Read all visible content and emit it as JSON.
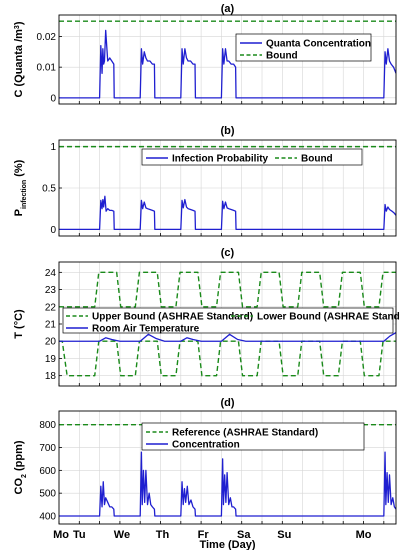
{
  "chart_data": [
    {
      "panel": "(a)",
      "type": "line",
      "title": "(a)",
      "ylabel": "C (Quanta /m³)",
      "ylabel_parts": [
        "C (Quanta /m",
        "3",
        ")"
      ],
      "xlim": [
        0,
        8.3
      ],
      "ylim": [
        -0.002,
        0.027
      ],
      "yticks": [
        0,
        0.01,
        0.02
      ],
      "ytick_labels": [
        "0",
        "0.01",
        "0.02"
      ],
      "grid": true,
      "legend_position": "top-right",
      "series": [
        {
          "name": "Quanta Concentration",
          "style": "solid",
          "color": "#1f1fd0",
          "baseline": 0,
          "pulses": [
            {
              "x": [
                1.0,
                1.03,
                1.06,
                1.08,
                1.1,
                1.12,
                1.15,
                1.2,
                1.25,
                1.3,
                1.35,
                1.36
              ],
              "y": [
                0.0,
                0.017,
                0.008,
                0.016,
                0.011,
                0.012,
                0.022,
                0.012,
                0.013,
                0.012,
                0.011,
                0.0
              ]
            },
            {
              "x": [
                2.0,
                2.03,
                2.06,
                2.1,
                2.14,
                2.18,
                2.24,
                2.3,
                2.35,
                2.36
              ],
              "y": [
                0.0,
                0.016,
                0.011,
                0.015,
                0.013,
                0.012,
                0.012,
                0.011,
                0.011,
                0.0
              ]
            },
            {
              "x": [
                3.0,
                3.03,
                3.06,
                3.1,
                3.14,
                3.18,
                3.24,
                3.3,
                3.35,
                3.36
              ],
              "y": [
                0.0,
                0.016,
                0.011,
                0.016,
                0.013,
                0.012,
                0.012,
                0.011,
                0.011,
                0.0
              ]
            },
            {
              "x": [
                4.0,
                4.03,
                4.06,
                4.1,
                4.14,
                4.18,
                4.24,
                4.3,
                4.35,
                4.36
              ],
              "y": [
                0.0,
                0.016,
                0.011,
                0.016,
                0.012,
                0.012,
                0.011,
                0.011,
                0.01,
                0.0
              ]
            },
            {
              "x": [
                8.0,
                8.03,
                8.06,
                8.1,
                8.14,
                8.18,
                8.24,
                8.3
              ],
              "y": [
                0.0,
                0.015,
                0.011,
                0.016,
                0.012,
                0.011,
                0.01,
                0.008
              ]
            }
          ]
        },
        {
          "name": "Bound",
          "style": "dashed",
          "color": "#1a8a1a",
          "y": 0.025
        }
      ]
    },
    {
      "panel": "(b)",
      "type": "line",
      "title": "(b)",
      "ylabel": "P infection (%)",
      "ylabel_parts": [
        "P",
        "infection",
        " (%)"
      ],
      "xlim": [
        0,
        8.3
      ],
      "ylim": [
        -0.08,
        1.08
      ],
      "yticks": [
        0,
        0.5,
        1
      ],
      "ytick_labels": [
        "0",
        "0.5",
        "1"
      ],
      "grid": true,
      "legend_position": "top",
      "series": [
        {
          "name": "Infection Probability",
          "style": "solid",
          "color": "#1f1fd0",
          "baseline": 0,
          "pulses": [
            {
              "x": [
                1.0,
                1.03,
                1.06,
                1.08,
                1.1,
                1.13,
                1.16,
                1.2,
                1.25,
                1.3,
                1.35,
                1.36
              ],
              "y": [
                0.0,
                0.35,
                0.25,
                0.36,
                0.27,
                0.4,
                0.22,
                0.25,
                0.23,
                0.23,
                0.22,
                0.0
              ]
            },
            {
              "x": [
                2.0,
                2.03,
                2.06,
                2.1,
                2.14,
                2.18,
                2.24,
                2.3,
                2.35,
                2.36
              ],
              "y": [
                0.0,
                0.35,
                0.25,
                0.33,
                0.26,
                0.25,
                0.24,
                0.23,
                0.22,
                0.0
              ]
            },
            {
              "x": [
                3.0,
                3.03,
                3.06,
                3.1,
                3.14,
                3.18,
                3.24,
                3.3,
                3.35,
                3.36
              ],
              "y": [
                0.0,
                0.35,
                0.26,
                0.36,
                0.27,
                0.25,
                0.24,
                0.23,
                0.22,
                0.0
              ]
            },
            {
              "x": [
                4.0,
                4.03,
                4.06,
                4.1,
                4.14,
                4.18,
                4.24,
                4.3,
                4.35,
                4.36
              ],
              "y": [
                0.0,
                0.34,
                0.25,
                0.33,
                0.26,
                0.25,
                0.24,
                0.23,
                0.22,
                0.0
              ]
            },
            {
              "x": [
                8.0,
                8.03,
                8.06,
                8.1,
                8.14,
                8.2,
                8.25,
                8.3
              ],
              "y": [
                0.0,
                0.3,
                0.22,
                0.27,
                0.24,
                0.22,
                0.2,
                0.17
              ]
            }
          ]
        },
        {
          "name": "Bound",
          "style": "dashed",
          "color": "#1a8a1a",
          "y": 1
        }
      ]
    },
    {
      "panel": "(c)",
      "type": "line",
      "title": "(c)",
      "ylabel": "T (°C)",
      "xlim": [
        0,
        8.3
      ],
      "ylim": [
        17.4,
        24.6
      ],
      "yticks": [
        18,
        19,
        20,
        21,
        22,
        23,
        24
      ],
      "ytick_labels": [
        "18",
        "19",
        "20",
        "21",
        "22",
        "23",
        "24"
      ],
      "grid": true,
      "legend_position": "middle",
      "series": [
        {
          "name": "Upper Bound (ASHRAE Standard)",
          "style": "dashed",
          "color": "#1a8a1a",
          "x": [
            0,
            0.88,
            0.98,
            1.42,
            1.52,
            1.88,
            1.98,
            2.42,
            2.52,
            2.88,
            2.98,
            3.42,
            3.52,
            3.88,
            3.98,
            4.42,
            4.52,
            4.88,
            4.98,
            5.42,
            5.52,
            5.88,
            5.98,
            6.42,
            6.52,
            6.88,
            6.98,
            7.42,
            7.52,
            7.88,
            7.98,
            8.3
          ],
          "y": [
            22,
            22,
            24,
            24,
            22,
            22,
            24,
            24,
            22,
            22,
            24,
            24,
            22,
            22,
            24,
            24,
            22,
            22,
            24,
            24,
            22,
            22,
            24,
            24,
            22,
            22,
            24,
            24,
            22,
            22,
            24,
            24
          ]
        },
        {
          "name": "Lower Bound  (ASHRAE Standard)",
          "style": "dashed",
          "color": "#1a8a1a",
          "x": [
            0,
            0.08,
            0.2,
            0.88,
            0.98,
            1.42,
            1.52,
            1.88,
            1.98,
            2.42,
            2.52,
            2.88,
            2.98,
            3.42,
            3.52,
            3.88,
            3.98,
            4.42,
            4.52,
            4.88,
            4.98,
            5.42,
            5.52,
            5.88,
            5.98,
            6.42,
            6.52,
            6.88,
            6.98,
            7.42,
            7.52,
            7.88,
            7.98,
            8.3
          ],
          "y": [
            20,
            20,
            18,
            18,
            20,
            20,
            18,
            18,
            20,
            20,
            18,
            18,
            20,
            20,
            18,
            18,
            20,
            20,
            18,
            18,
            20,
            20,
            18,
            18,
            20,
            20,
            18,
            18,
            20,
            20,
            18,
            18,
            20,
            20
          ]
        },
        {
          "name": "Room Air Temperature",
          "style": "solid",
          "color": "#1f1fd0",
          "x": [
            0,
            1.0,
            1.15,
            1.3,
            1.5,
            2.0,
            2.2,
            2.4,
            2.6,
            3.0,
            3.15,
            3.3,
            3.5,
            4.0,
            4.2,
            4.4,
            4.6,
            5.0,
            5.4,
            5.6,
            6.0,
            6.4,
            6.6,
            7.0,
            7.4,
            7.6,
            8.0,
            8.15,
            8.3
          ],
          "y": [
            20,
            20,
            20.2,
            20.1,
            20,
            20,
            20.4,
            20.15,
            20,
            20,
            20.2,
            20.1,
            20,
            20,
            20.4,
            20.1,
            20,
            20,
            20,
            20,
            20,
            20,
            20,
            20,
            20,
            20,
            20,
            20.3,
            20.5
          ]
        }
      ]
    },
    {
      "panel": "(d)",
      "type": "line",
      "title": "(d)",
      "ylabel": "CO₂ (ppm)",
      "ylabel_parts": [
        "CO",
        "2",
        " (ppm)"
      ],
      "xlabel": "Time (Day)",
      "xlim": [
        0,
        8.3
      ],
      "ylim": [
        365,
        860
      ],
      "yticks": [
        400,
        500,
        600,
        700,
        800
      ],
      "ytick_labels": [
        "400",
        "500",
        "600",
        "700",
        "800"
      ],
      "xticks": [
        0,
        0.5,
        1.5,
        2.5,
        3.5,
        4.5,
        5.5,
        6.5,
        7.5
      ],
      "xtick_labels": [
        "Mo",
        "Tu",
        "We",
        "Th",
        "Fr",
        "Sa",
        "Su",
        "Mo",
        ""
      ],
      "xtick_positions_days": [
        0.05,
        0.5,
        1.55,
        2.55,
        3.55,
        4.55,
        5.55,
        7.5
      ],
      "grid": true,
      "legend_position": "top-center",
      "series": [
        {
          "name": "Reference (ASHRAE Standard)",
          "style": "dashed",
          "color": "#1a8a1a",
          "y": 800
        },
        {
          "name": "Concentration",
          "style": "solid",
          "color": "#1f1fd0",
          "baseline": 400,
          "pulses": [
            {
              "x": [
                1.0,
                1.03,
                1.06,
                1.09,
                1.12,
                1.15,
                1.2,
                1.25,
                1.3,
                1.35,
                1.36
              ],
              "y": [
                400,
                530,
                440,
                550,
                450,
                480,
                460,
                440,
                440,
                430,
                400
              ]
            },
            {
              "x": [
                2.0,
                2.03,
                2.05,
                2.08,
                2.11,
                2.14,
                2.18,
                2.22,
                2.26,
                2.3,
                2.35,
                2.36
              ],
              "y": [
                400,
                680,
                450,
                600,
                460,
                600,
                450,
                500,
                450,
                440,
                430,
                400
              ]
            },
            {
              "x": [
                3.0,
                3.03,
                3.06,
                3.09,
                3.12,
                3.16,
                3.2,
                3.25,
                3.3,
                3.35,
                3.36
              ],
              "y": [
                400,
                550,
                450,
                520,
                460,
                530,
                450,
                470,
                440,
                430,
                400
              ]
            },
            {
              "x": [
                4.0,
                4.03,
                4.05,
                4.08,
                4.11,
                4.14,
                4.18,
                4.22,
                4.26,
                4.3,
                4.35,
                4.36
              ],
              "y": [
                400,
                650,
                450,
                580,
                460,
                590,
                450,
                480,
                440,
                440,
                430,
                400
              ]
            },
            {
              "x": [
                8.0,
                8.03,
                8.05,
                8.08,
                8.11,
                8.14,
                8.18,
                8.22,
                8.26,
                8.3
              ],
              "y": [
                400,
                680,
                450,
                590,
                460,
                580,
                450,
                480,
                440,
                430
              ]
            }
          ]
        }
      ]
    }
  ]
}
